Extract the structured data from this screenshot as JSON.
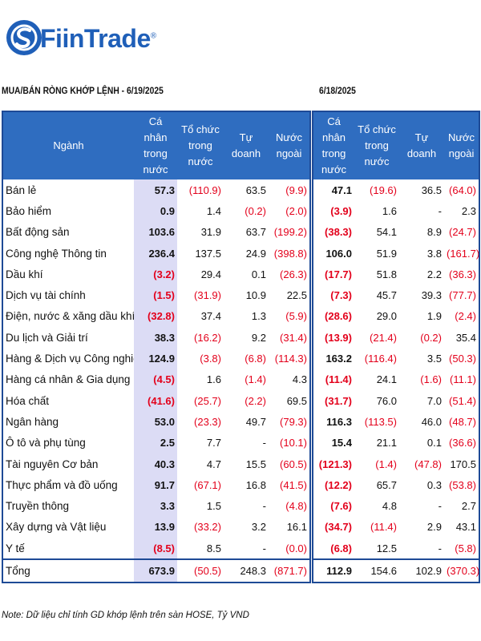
{
  "brand": {
    "name": "FiinTrade",
    "reg_mark": "®",
    "color": "#1f5fb8"
  },
  "left_title": "MUA/BÁN RÒNG KHỚP LỆNH - 6/19/2025",
  "right_title": "6/18/2025",
  "headers": {
    "sector": "Ngành",
    "individual": "Cá nhân trong nước",
    "institution": "Tổ chức trong nước",
    "proprietary": "Tự doanh",
    "foreign": "Nước ngoài"
  },
  "rows": [
    {
      "sector": "Bán lẻ",
      "d1": [
        "57.3",
        "(110.9)",
        "63.5",
        "(9.9)"
      ],
      "d2": [
        "47.1",
        "(19.6)",
        "36.5",
        "(64.0)"
      ]
    },
    {
      "sector": "Bảo hiểm",
      "d1": [
        "0.9",
        "1.4",
        "(0.2)",
        "(2.0)"
      ],
      "d2": [
        "(3.9)",
        "1.6",
        "-",
        "2.3"
      ]
    },
    {
      "sector": "Bất động sản",
      "d1": [
        "103.6",
        "31.9",
        "63.7",
        "(199.2)"
      ],
      "d2": [
        "(38.3)",
        "54.1",
        "8.9",
        "(24.7)"
      ]
    },
    {
      "sector": "Công nghệ Thông tin",
      "d1": [
        "236.4",
        "137.5",
        "24.9",
        "(398.8)"
      ],
      "d2": [
        "106.0",
        "51.9",
        "3.8",
        "(161.7)"
      ]
    },
    {
      "sector": "Dầu khí",
      "d1": [
        "(3.2)",
        "29.4",
        "0.1",
        "(26.3)"
      ],
      "d2": [
        "(17.7)",
        "51.8",
        "2.2",
        "(36.3)"
      ]
    },
    {
      "sector": "Dịch vụ tài chính",
      "d1": [
        "(1.5)",
        "(31.9)",
        "10.9",
        "22.5"
      ],
      "d2": [
        "(7.3)",
        "45.7",
        "39.3",
        "(77.7)"
      ]
    },
    {
      "sector": "Điện, nước & xăng dầu khí đốt",
      "d1": [
        "(32.8)",
        "37.4",
        "1.3",
        "(5.9)"
      ],
      "d2": [
        "(28.6)",
        "29.0",
        "1.9",
        "(2.4)"
      ]
    },
    {
      "sector": "Du lịch và Giải trí",
      "d1": [
        "38.3",
        "(16.2)",
        "9.2",
        "(31.4)"
      ],
      "d2": [
        "(13.9)",
        "(21.4)",
        "(0.2)",
        "35.4"
      ]
    },
    {
      "sector": "Hàng & Dịch vụ Công nghiệp",
      "d1": [
        "124.9",
        "(3.8)",
        "(6.8)",
        "(114.3)"
      ],
      "d2": [
        "163.2",
        "(116.4)",
        "3.5",
        "(50.3)"
      ]
    },
    {
      "sector": "Hàng cá nhân & Gia dụng",
      "d1": [
        "(4.5)",
        "1.6",
        "(1.4)",
        "4.3"
      ],
      "d2": [
        "(11.4)",
        "24.1",
        "(1.6)",
        "(11.1)"
      ]
    },
    {
      "sector": "Hóa chất",
      "d1": [
        "(41.6)",
        "(25.7)",
        "(2.2)",
        "69.5"
      ],
      "d2": [
        "(31.7)",
        "76.0",
        "7.0",
        "(51.4)"
      ]
    },
    {
      "sector": "Ngân hàng",
      "d1": [
        "53.0",
        "(23.3)",
        "49.7",
        "(79.3)"
      ],
      "d2": [
        "116.3",
        "(113.5)",
        "46.0",
        "(48.7)"
      ]
    },
    {
      "sector": "Ô tô và phụ tùng",
      "d1": [
        "2.5",
        "7.7",
        "-",
        "(10.1)"
      ],
      "d2": [
        "15.4",
        "21.1",
        "0.1",
        "(36.6)"
      ]
    },
    {
      "sector": "Tài nguyên Cơ bản",
      "d1": [
        "40.3",
        "4.7",
        "15.5",
        "(60.5)"
      ],
      "d2": [
        "(121.3)",
        "(1.4)",
        "(47.8)",
        "170.5"
      ]
    },
    {
      "sector": "Thực phẩm và đồ uống",
      "d1": [
        "91.7",
        "(67.1)",
        "16.8",
        "(41.5)"
      ],
      "d2": [
        "(12.2)",
        "65.7",
        "0.3",
        "(53.8)"
      ]
    },
    {
      "sector": "Truyền thông",
      "d1": [
        "3.3",
        "1.5",
        "-",
        "(4.8)"
      ],
      "d2": [
        "(7.6)",
        "4.8",
        "-",
        "2.7"
      ]
    },
    {
      "sector": "Xây dựng và Vật liệu",
      "d1": [
        "13.9",
        "(33.2)",
        "3.2",
        "16.1"
      ],
      "d2": [
        "(34.7)",
        "(11.4)",
        "2.9",
        "43.1"
      ]
    },
    {
      "sector": "Y tế",
      "d1": [
        "(8.5)",
        "8.5",
        "-",
        "(0.0)"
      ],
      "d2": [
        "(6.8)",
        "12.5",
        "-",
        "(5.8)"
      ]
    }
  ],
  "total": {
    "sector": "Tổng",
    "d1": [
      "673.9",
      "(50.5)",
      "248.3",
      "(871.7)"
    ],
    "d2": [
      "112.9",
      "154.6",
      "102.9",
      "(370.3)"
    ]
  },
  "note": "Note: Dữ liệu chỉ tính GD khớp lệnh trên sàn HOSE, Tỷ VND",
  "colors": {
    "header_bg": "#2f6dc0",
    "border": "#1e4a96",
    "highlight_col": "#dcdcf5",
    "negative": "#e3001b"
  }
}
